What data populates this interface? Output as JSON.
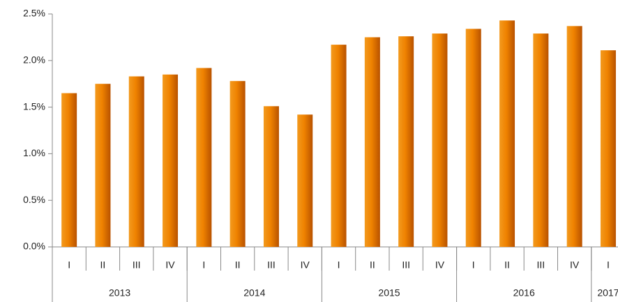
{
  "chart_data": {
    "type": "bar",
    "categories": [
      "I",
      "II",
      "III",
      "IV",
      "I",
      "II",
      "III",
      "IV",
      "I",
      "II",
      "III",
      "IV",
      "I",
      "II",
      "III",
      "IV",
      "I"
    ],
    "groups": [
      {
        "label": "2013",
        "span": 4
      },
      {
        "label": "2014",
        "span": 4
      },
      {
        "label": "2015",
        "span": 4
      },
      {
        "label": "2016",
        "span": 4
      },
      {
        "label": "2017",
        "span": 1
      }
    ],
    "values": [
      1.65,
      1.75,
      1.83,
      1.85,
      1.92,
      1.78,
      1.51,
      1.42,
      2.17,
      2.25,
      2.26,
      2.29,
      2.34,
      2.43,
      2.29,
      2.37,
      2.11
    ],
    "color": "#ef8200",
    "ylim": [
      0,
      2.5
    ],
    "yticks": [
      {
        "value": 0,
        "label": "0.0%"
      },
      {
        "value": 0.5,
        "label": "0.5%"
      },
      {
        "value": 1,
        "label": "1.0%"
      },
      {
        "value": 1.5,
        "label": "1.5%"
      },
      {
        "value": 2,
        "label": "2.0%"
      },
      {
        "value": 2.5,
        "label": "2.5%"
      }
    ],
    "grid": false
  }
}
